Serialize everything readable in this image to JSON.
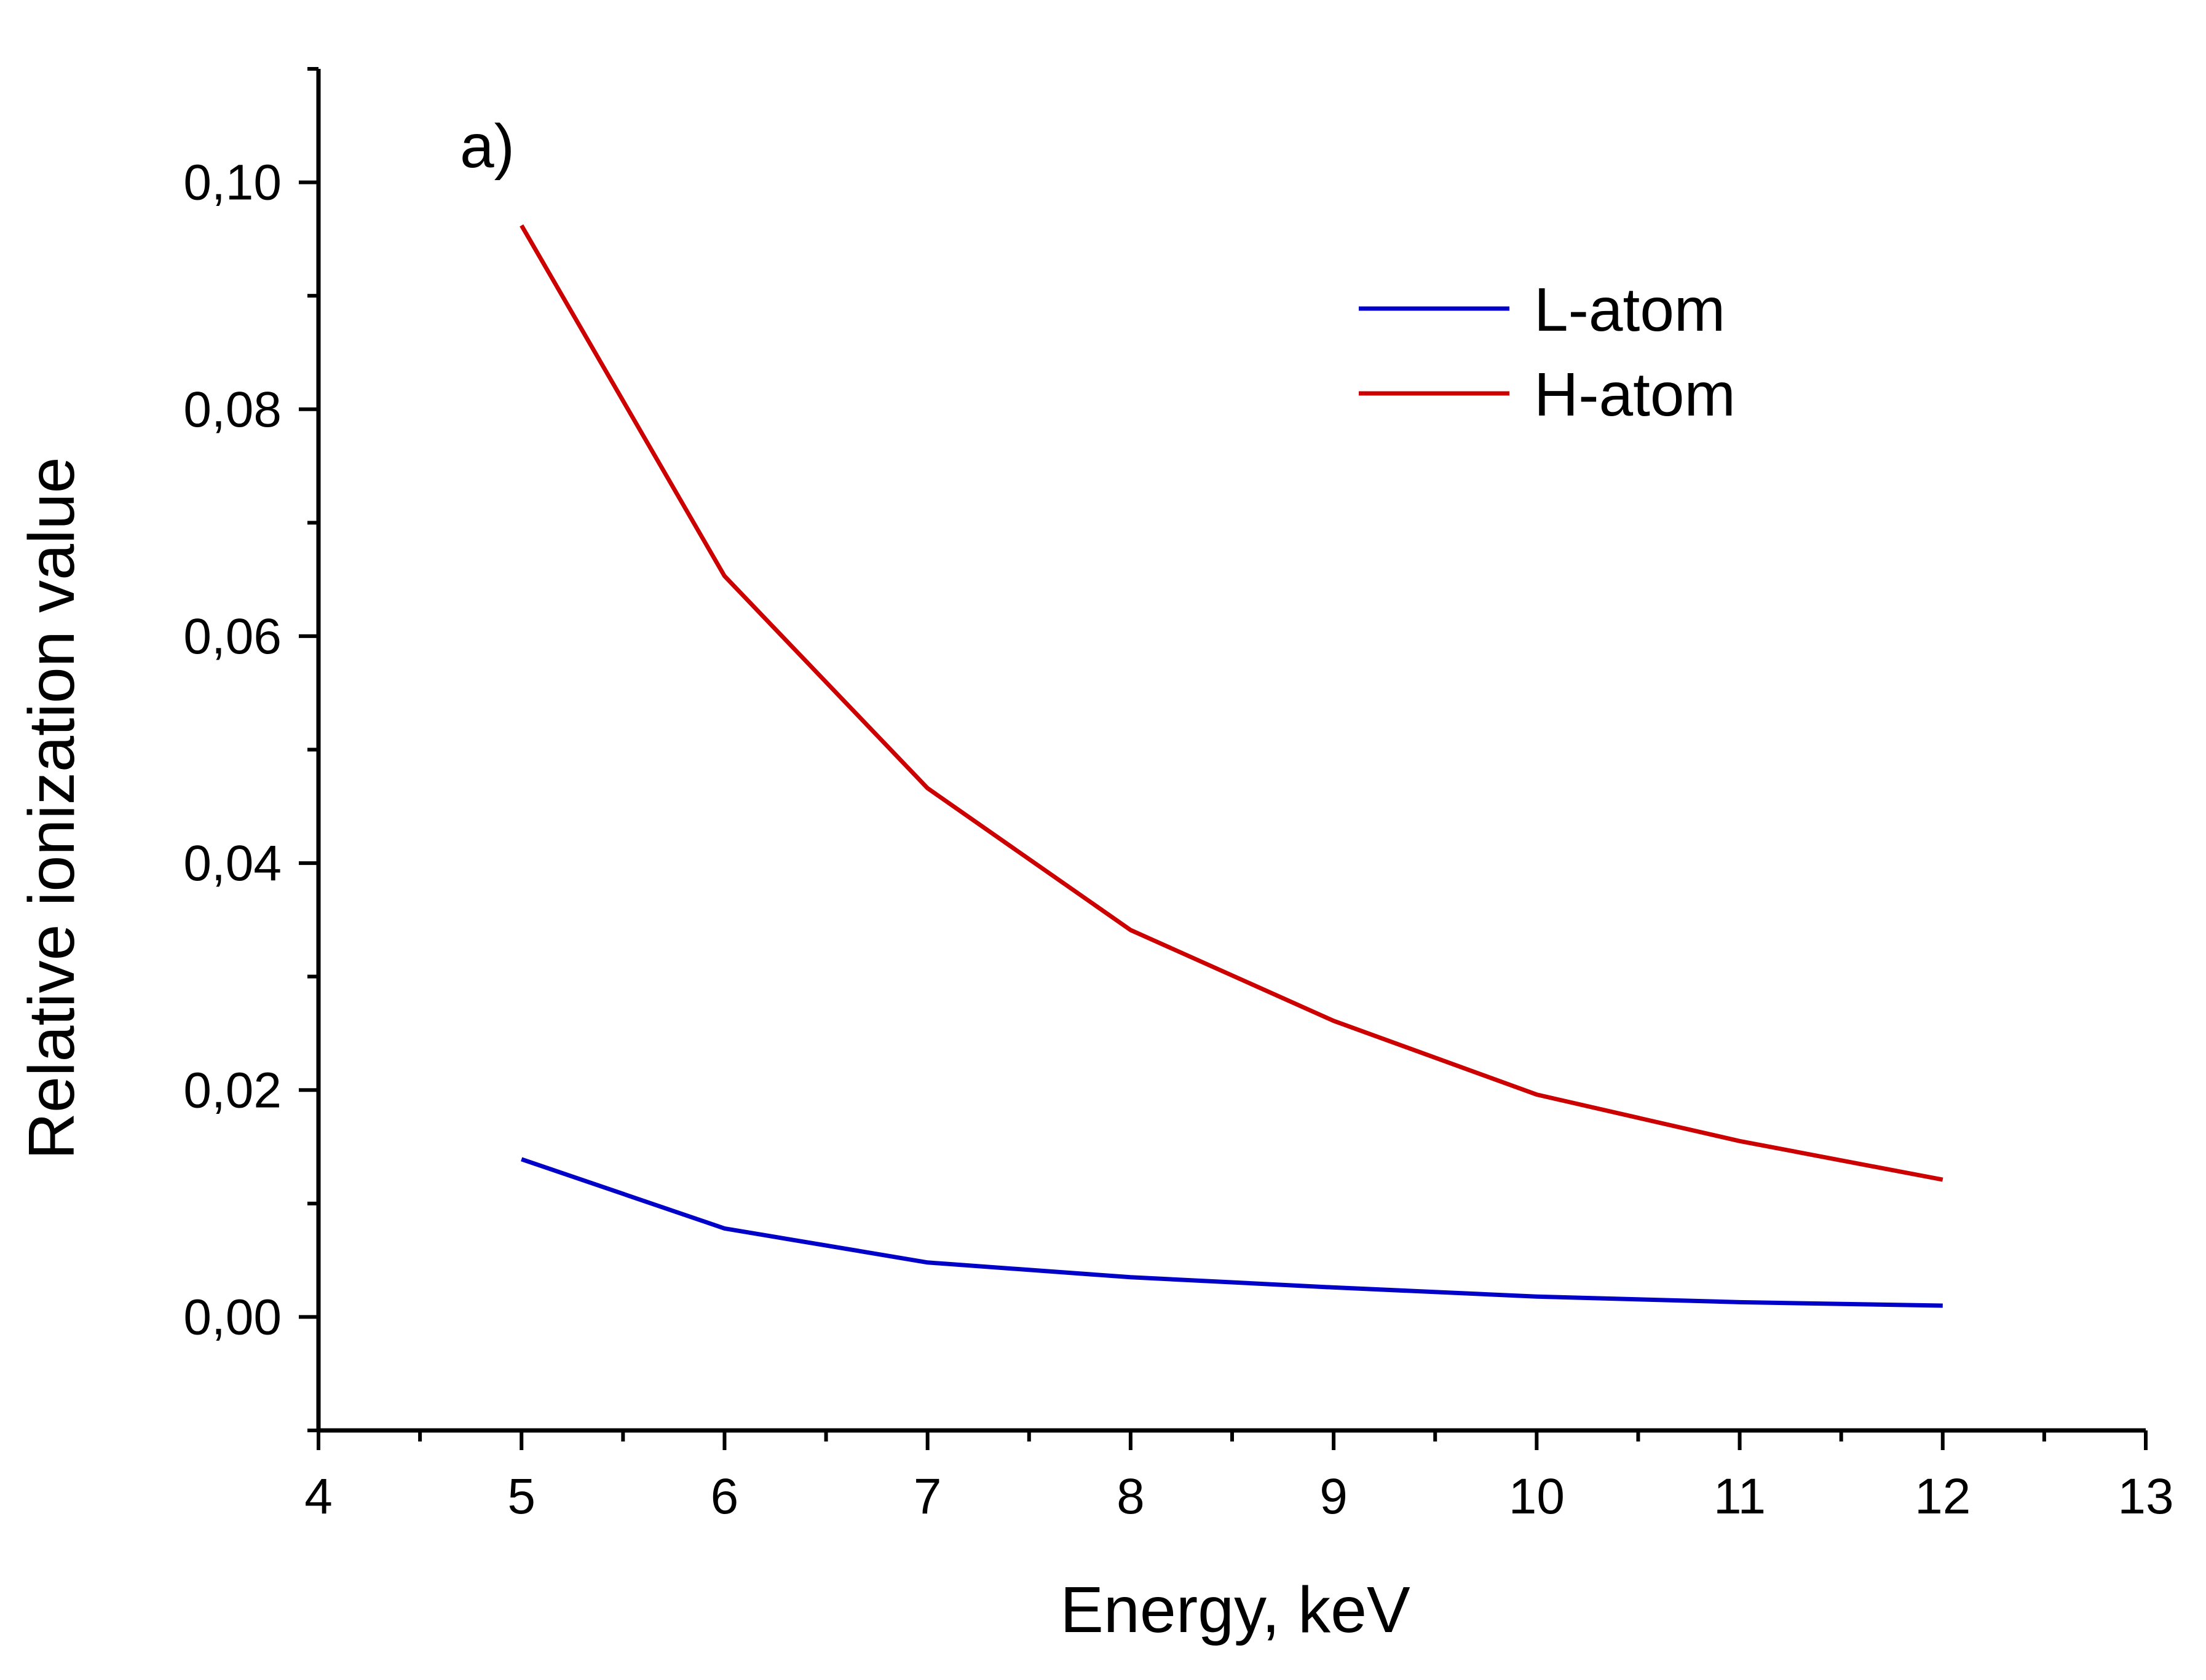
{
  "chart_data": {
    "type": "line",
    "panel_label": "a)",
    "xlabel": "Energy, keV",
    "ylabel": "Relative ionization value",
    "xlim": [
      4,
      13
    ],
    "ylim": [
      -0.01,
      0.11
    ],
    "x_ticks": [
      "4",
      "5",
      "6",
      "7",
      "8",
      "9",
      "10",
      "11",
      "12",
      "13"
    ],
    "y_ticks": [
      "0,00",
      "0,02",
      "0,04",
      "0,06",
      "0,08",
      "0,10"
    ],
    "grid": false,
    "legend_position": "top-right",
    "x": [
      5,
      6,
      7,
      8,
      9,
      10,
      11,
      12
    ],
    "series": [
      {
        "name": "L-atom",
        "color": "#0000c8",
        "values": [
          0.0139,
          0.0078,
          0.0048,
          0.0035,
          0.0026,
          0.0018,
          0.0013,
          0.001
        ]
      },
      {
        "name": "H-atom",
        "color": "#cc0000",
        "values": [
          0.0962,
          0.0653,
          0.0466,
          0.0341,
          0.0261,
          0.0196,
          0.0155,
          0.0121
        ]
      }
    ]
  }
}
